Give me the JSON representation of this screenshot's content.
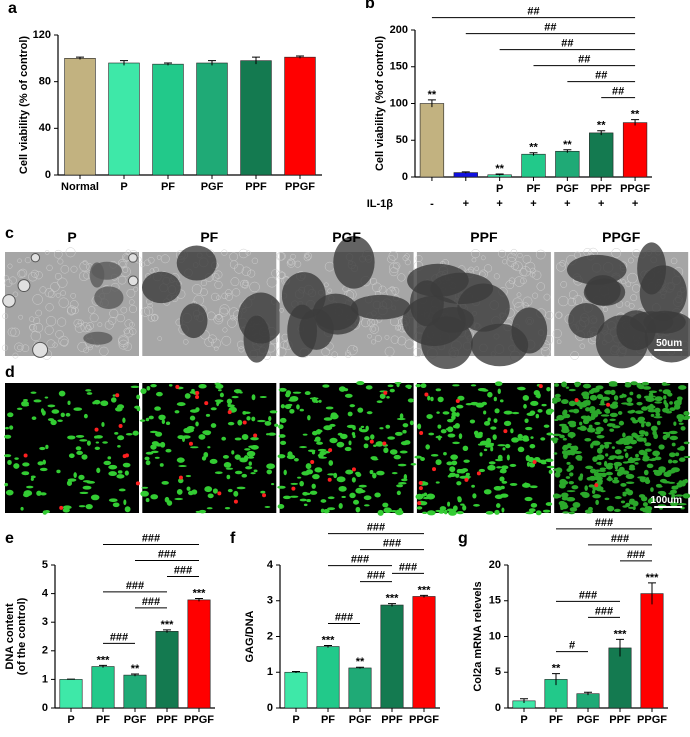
{
  "chart_data": [
    {
      "type": "bar",
      "panel": "a",
      "ylabel": [
        "Cell viability (% of control)"
      ],
      "categories": [
        "Normal",
        "P",
        "PF",
        "PGF",
        "PPF",
        "PPGF"
      ],
      "values": [
        100,
        96,
        95,
        96,
        98,
        101
      ],
      "errors": [
        1,
        2,
        1,
        2,
        3,
        1
      ],
      "colors": [
        "#c2b280",
        "#3ee8a8",
        "#22c98a",
        "#1faa76",
        "#147a50",
        "#ff0000"
      ],
      "ylim": [
        0,
        120
      ],
      "yticks": [
        0,
        40,
        80,
        120
      ]
    },
    {
      "type": "bar",
      "panel": "b",
      "ylabel": [
        "Cell viability (%of control)"
      ],
      "categories": [
        null,
        null,
        "P",
        "PF",
        "PGF",
        "PPF",
        "PPGF"
      ],
      "values": [
        100,
        6,
        3,
        31,
        35,
        60,
        74
      ],
      "errors": [
        5,
        1,
        1,
        2,
        2,
        3,
        4
      ],
      "colors": [
        "#c2b280",
        "#1010e0",
        "#3ee8a8",
        "#22c98a",
        "#1faa76",
        "#147a50",
        "#ff0000"
      ],
      "ylim": [
        0,
        200
      ],
      "yticks": [
        0,
        50,
        100,
        150,
        200
      ],
      "row_label": "IL-1β",
      "row_values": [
        "-",
        "+",
        "+",
        "+",
        "+",
        "+",
        "+"
      ],
      "annotations": [
        {
          "index": 0,
          "label": "**"
        },
        {
          "index": 2,
          "label": "**"
        },
        {
          "index": 3,
          "label": "**"
        },
        {
          "index": 4,
          "label": "**"
        },
        {
          "index": 5,
          "label": "**"
        },
        {
          "index": 6,
          "label": "**"
        }
      ],
      "brackets": [
        {
          "from": 5,
          "to": 6,
          "label": "##"
        },
        {
          "from": 4,
          "to": 6,
          "label": "##"
        },
        {
          "from": 3,
          "to": 6,
          "label": "##"
        },
        {
          "from": 2,
          "to": 6,
          "label": "##"
        },
        {
          "from": 1,
          "to": 6,
          "label": "##"
        },
        {
          "from": 0,
          "to": 6,
          "label": "##"
        }
      ]
    },
    {
      "type": "bar",
      "panel": "e",
      "ylabel": [
        "DNA content",
        "(of the control)"
      ],
      "categories": [
        "P",
        "PF",
        "PGF",
        "PPF",
        "PPGF"
      ],
      "values": [
        1,
        1.45,
        1.15,
        2.68,
        3.78
      ],
      "errors": [
        0.01,
        0.04,
        0.04,
        0.05,
        0.05
      ],
      "colors": [
        "#3ee8a8",
        "#22c98a",
        "#1faa76",
        "#147a50",
        "#ff0000"
      ],
      "ylim": [
        0,
        5
      ],
      "yticks": [
        0,
        1,
        2,
        3,
        4,
        5
      ],
      "annotations": [
        {
          "index": 1,
          "label": "***"
        },
        {
          "index": 2,
          "label": "**"
        },
        {
          "index": 3,
          "label": "***"
        },
        {
          "index": 4,
          "label": "***"
        }
      ],
      "brackets": [
        {
          "from": 1,
          "to": 2,
          "label": "###"
        },
        {
          "from": 2,
          "to": 3,
          "label": "###"
        },
        {
          "from": 3,
          "to": 4,
          "label": "###"
        },
        {
          "from": 1,
          "to": 3,
          "label": "###"
        },
        {
          "from": 2,
          "to": 4,
          "label": "###"
        },
        {
          "from": 1,
          "to": 4,
          "label": "###"
        }
      ]
    },
    {
      "type": "bar",
      "panel": "f",
      "ylabel": [
        "GAG/DNA"
      ],
      "categories": [
        "P",
        "PF",
        "PGF",
        "PPF",
        "PPGF"
      ],
      "values": [
        1,
        1.72,
        1.12,
        2.88,
        3.12
      ],
      "errors": [
        0.02,
        0.03,
        0.02,
        0.04,
        0.03
      ],
      "colors": [
        "#3ee8a8",
        "#22c98a",
        "#1faa76",
        "#147a50",
        "#ff0000"
      ],
      "ylim": [
        0,
        4
      ],
      "yticks": [
        0,
        1,
        2,
        3,
        4
      ],
      "annotations": [
        {
          "index": 1,
          "label": "***"
        },
        {
          "index": 2,
          "label": "**"
        },
        {
          "index": 3,
          "label": "***"
        },
        {
          "index": 4,
          "label": "***"
        }
      ],
      "brackets": [
        {
          "from": 1,
          "to": 2,
          "label": "###"
        },
        {
          "from": 3,
          "to": 4,
          "label": "###"
        },
        {
          "from": 2,
          "to": 3,
          "label": "###"
        },
        {
          "from": 1,
          "to": 3,
          "label": "###"
        },
        {
          "from": 2,
          "to": 4,
          "label": "###"
        },
        {
          "from": 1,
          "to": 4,
          "label": "###"
        }
      ]
    },
    {
      "type": "bar",
      "panel": "g",
      "ylabel": [
        "Col2a mRNA relevels"
      ],
      "categories": [
        "P",
        "PF",
        "PGF",
        "PPF",
        "PPGF"
      ],
      "values": [
        1,
        4,
        2,
        8.4,
        16
      ],
      "errors": [
        0.3,
        0.8,
        0.2,
        1.2,
        1.5
      ],
      "colors": [
        "#3ee8a8",
        "#22c98a",
        "#1faa76",
        "#147a50",
        "#ff0000"
      ],
      "ylim": [
        0,
        20
      ],
      "yticks": [
        0,
        5,
        10,
        15,
        20
      ],
      "annotations": [
        {
          "index": 1,
          "label": "**"
        },
        {
          "index": 3,
          "label": "***"
        },
        {
          "index": 4,
          "label": "***"
        }
      ],
      "brackets": [
        {
          "from": 1,
          "to": 2,
          "label": "#"
        },
        {
          "from": 2,
          "to": 3,
          "label": "###"
        },
        {
          "from": 3,
          "to": 4,
          "label": "###"
        },
        {
          "from": 1,
          "to": 3,
          "label": "###"
        },
        {
          "from": 2,
          "to": 4,
          "label": "###"
        },
        {
          "from": 1,
          "to": 4,
          "label": "###"
        }
      ]
    }
  ],
  "images": [
    {
      "panel": "c",
      "labels": [
        "P",
        "PF",
        "PGF",
        "PPF",
        "PPGF"
      ],
      "scale_bar": "50um"
    },
    {
      "panel": "d",
      "scale_bar": "100um"
    }
  ]
}
